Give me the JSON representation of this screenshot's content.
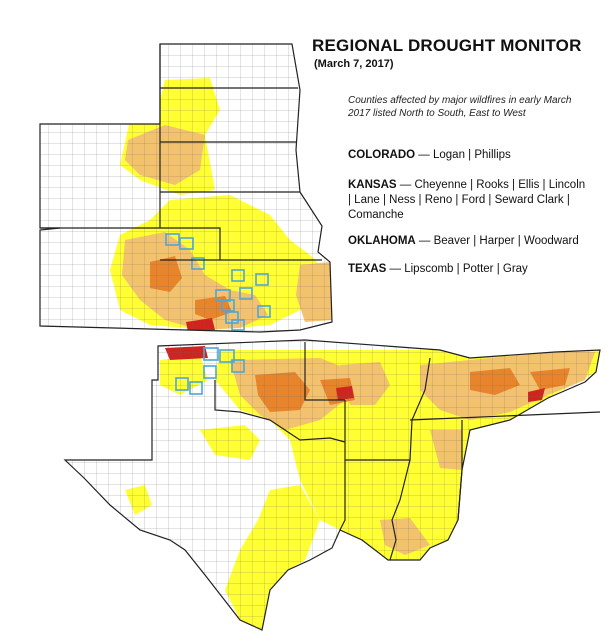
{
  "header": {
    "title": "REGIONAL DROUGHT MONITOR",
    "date": "(March 7, 2017)"
  },
  "legend_note": {
    "text": "Counties affected by major wildfires in early March 2017 listed North to South, East to West"
  },
  "states": [
    {
      "name": "COLORADO",
      "counties": "Logan | Phillips"
    },
    {
      "name": "KANSAS",
      "counties": "Cheyenne | Rooks | Ellis | Lincoln | Lane | Ness | Reno | Ford | Seward Clark | Comanche"
    },
    {
      "name": "OKLAHOMA",
      "counties": "Beaver | Harper | Woodward"
    },
    {
      "name": "TEXAS",
      "counties": "Lipscomb | Potter | Gray"
    }
  ],
  "separator": " — ",
  "colors": {
    "abnormally_dry": "#ffff33",
    "moderate_drought": "#f2c26e",
    "severe_drought": "#e8842b",
    "extreme_drought": "#d0251e",
    "wildfire_county_outline": "#4fa6d6"
  }
}
